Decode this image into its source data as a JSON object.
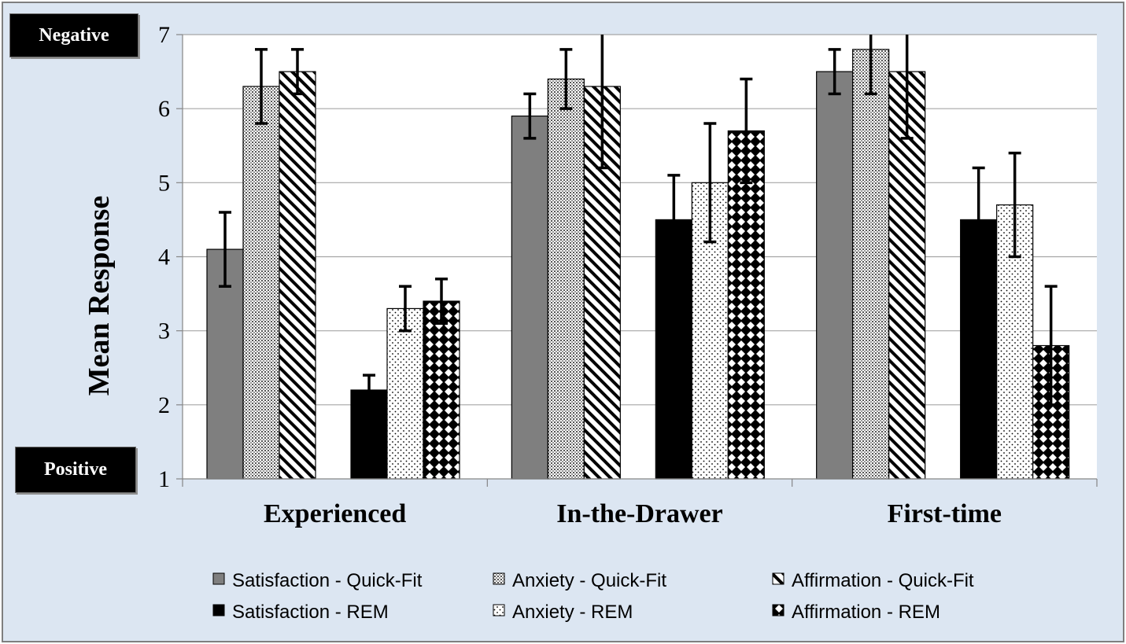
{
  "chart_data": {
    "type": "bar",
    "categories": [
      "Experienced",
      "In-the-Drawer",
      "First-time"
    ],
    "ylabel": "Mean Response",
    "xlabel": "",
    "ylim": [
      1,
      7
    ],
    "yticks": [
      1,
      2,
      3,
      4,
      5,
      6,
      7
    ],
    "grid": true,
    "legend_position": "bottom",
    "annotations": {
      "top": "Negative",
      "bottom": "Positive"
    },
    "groups": [
      "Quick-Fit",
      "REM"
    ],
    "series": [
      {
        "name": "Satisfaction - Quick-Fit",
        "group": 0,
        "pattern": "solid-gray",
        "values": [
          4.1,
          5.9,
          6.5
        ],
        "errors": [
          0.5,
          0.3,
          0.3
        ]
      },
      {
        "name": "Anxiety - Quick-Fit",
        "group": 0,
        "pattern": "fine-grid",
        "values": [
          6.3,
          6.4,
          6.8
        ],
        "errors": [
          0.5,
          0.4,
          0.6
        ]
      },
      {
        "name": "Affirmation - Quick-Fit",
        "group": 0,
        "pattern": "diagonal",
        "values": [
          6.5,
          6.3,
          6.5
        ],
        "errors": [
          0.3,
          1.1,
          0.9
        ]
      },
      {
        "name": "Satisfaction - REM",
        "group": 1,
        "pattern": "solid-black",
        "values": [
          2.2,
          4.5,
          4.5
        ],
        "errors": [
          0.2,
          0.6,
          0.7
        ]
      },
      {
        "name": "Anxiety - REM",
        "group": 1,
        "pattern": "dots",
        "values": [
          3.3,
          5.0,
          4.7
        ],
        "errors": [
          0.3,
          0.8,
          0.7
        ]
      },
      {
        "name": "Affirmation - REM",
        "group": 1,
        "pattern": "diamonds",
        "values": [
          3.4,
          5.7,
          2.8
        ],
        "errors": [
          0.3,
          0.7,
          0.8
        ]
      }
    ],
    "colors": {
      "background": "#dce6f2",
      "plot": "#ffffff",
      "gray": "#7f7f7f",
      "black": "#000000",
      "grid": "#a6a6a6"
    }
  }
}
